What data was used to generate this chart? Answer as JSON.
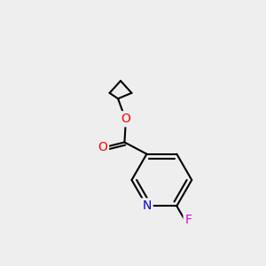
{
  "bg_color": "#eeeeee",
  "bond_color": "#000000",
  "bond_width": 1.5,
  "atom_colors": {
    "O": "#ff0000",
    "N": "#0000dd",
    "F": "#dd00dd",
    "C": "#000000"
  },
  "font_size": 10,
  "fig_size": [
    3.0,
    3.0
  ],
  "dpi": 100
}
